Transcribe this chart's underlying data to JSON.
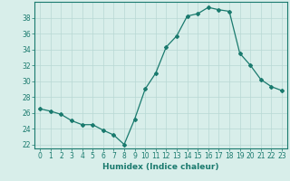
{
  "x": [
    0,
    1,
    2,
    3,
    4,
    5,
    6,
    7,
    8,
    9,
    10,
    11,
    12,
    13,
    14,
    15,
    16,
    17,
    18,
    19,
    20,
    21,
    22,
    23
  ],
  "y": [
    26.5,
    26.2,
    25.8,
    25.0,
    24.5,
    24.5,
    23.8,
    23.2,
    22.0,
    25.2,
    29.0,
    31.0,
    34.3,
    35.7,
    38.2,
    38.5,
    39.3,
    39.0,
    38.8,
    33.5,
    32.0,
    30.2,
    29.3,
    28.8
  ],
  "line_color": "#1a7a6e",
  "marker": "D",
  "marker_size": 2.0,
  "bg_color": "#d8eeea",
  "grid_color": "#b8d8d4",
  "xlabel": "Humidex (Indice chaleur)",
  "xlim": [
    -0.5,
    23.5
  ],
  "ylim": [
    21.5,
    40.0
  ],
  "yticks": [
    22,
    24,
    26,
    28,
    30,
    32,
    34,
    36,
    38
  ],
  "xticks": [
    0,
    1,
    2,
    3,
    4,
    5,
    6,
    7,
    8,
    9,
    10,
    11,
    12,
    13,
    14,
    15,
    16,
    17,
    18,
    19,
    20,
    21,
    22,
    23
  ],
  "tick_color": "#1a7a6e",
  "label_color": "#1a7a6e",
  "axis_color": "#1a7a6e",
  "xlabel_fontsize": 6.5,
  "tick_fontsize": 5.5,
  "linewidth": 0.9
}
